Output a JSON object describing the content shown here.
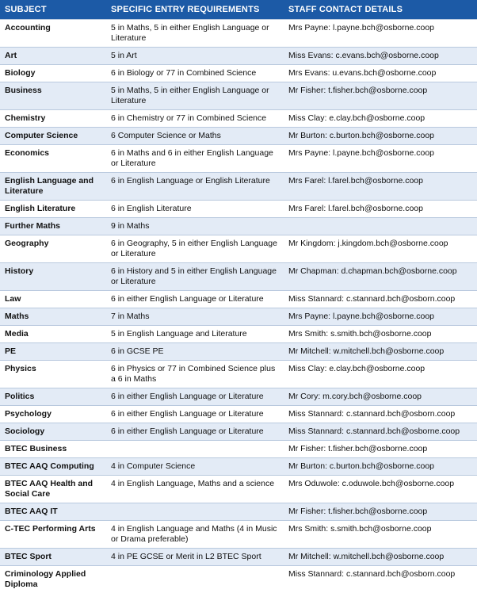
{
  "table": {
    "headers": [
      "SUBJECT",
      "SPECIFIC ENTRY REQUIREMENTS",
      "STAFF CONTACT DETAILS"
    ],
    "rows": [
      [
        "Accounting",
        "5 in Maths, 5 in either English Language or Literature",
        "Mrs Payne: l.payne.bch@osborne.coop"
      ],
      [
        "Art",
        "5 in Art",
        "Miss Evans: c.evans.bch@osborne.coop"
      ],
      [
        "Biology",
        "6 in Biology or 77 in Combined Science",
        "Mrs Evans: u.evans.bch@osborne.coop"
      ],
      [
        "Business",
        "5 in Maths, 5 in either English Language or Literature",
        "Mr Fisher: t.fisher.bch@osborne.coop"
      ],
      [
        "Chemistry",
        "6 in Chemistry or 77 in Combined Science",
        "Miss Clay: e.clay.bch@osborne.coop"
      ],
      [
        "Computer Science",
        "6 Computer Science or Maths",
        "Mr Burton: c.burton.bch@osborne.coop"
      ],
      [
        "Economics",
        "6 in Maths and 6 in either English Language or Literature",
        "Mrs Payne: l.payne.bch@osborne.coop"
      ],
      [
        "English Language and Literature",
        "6 in English Language or English Literature",
        "Mrs Farel: l.farel.bch@osborne.coop"
      ],
      [
        "English Literature",
        "6 in English Literature",
        "Mrs Farel: l.farel.bch@osborne.coop"
      ],
      [
        "Further Maths",
        "9 in Maths",
        null
      ],
      [
        "Geography",
        "6 in Geography, 5 in either English Language or Literature",
        "Mr Kingdom: j.kingdom.bch@osborne.coop"
      ],
      [
        "History",
        "6 in History and 5 in either English Language or Literature",
        "Mr Chapman: d.chapman.bch@osborne.coop"
      ],
      [
        "Law",
        "6 in either English Language or Literature",
        "Miss Stannard: c.stannard.bch@osborn.coop"
      ],
      [
        "Maths",
        "7 in Maths",
        "Mrs Payne: l.payne.bch@osborne.coop"
      ],
      [
        "Media",
        "5 in English Language and Literature",
        "Mrs Smith: s.smith.bch@osborne.coop"
      ],
      [
        "PE",
        "6 in GCSE PE",
        "Mr Mitchell: w.mitchell.bch@osborne.coop"
      ],
      [
        "Physics",
        "6 in Physics or 77 in Combined Science plus a 6 in Maths",
        "Miss Clay: e.clay.bch@osborne.coop"
      ],
      [
        "Politics",
        "6 in either English Language or Literature",
        "Mr Cory: m.cory.bch@osborne.coop"
      ],
      [
        "Psychology",
        "6 in either English Language or Literature",
        "Miss Stannard: c.stannard.bch@osborn.coop"
      ],
      [
        "Sociology",
        "6 in either English Language or Literature",
        "Miss Stannard: c.stannard.bch@osborne.coop"
      ],
      [
        "BTEC Business",
        null,
        "Mr Fisher: t.fisher.bch@osborne.coop"
      ],
      [
        "BTEC AAQ Computing",
        "4 in Computer Science",
        "Mr Burton: c.burton.bch@osborne.coop"
      ],
      [
        "BTEC AAQ Health and Social Care",
        "4 in English Language, Maths and a science",
        "Mrs Oduwole: c.oduwole.bch@osborne.coop"
      ],
      [
        "BTEC AAQ IT",
        null,
        "Mr Fisher: t.fisher.bch@osborne.coop"
      ],
      [
        "C-TEC Performing Arts",
        "4 in English Language and Maths (4 in Music or Drama preferable)",
        "Mrs Smith: s.smith.bch@osborne.coop"
      ],
      [
        "BTEC Sport",
        "4 in PE GCSE or Merit in L2 BTEC Sport",
        "Mr Mitchell: w.mitchell.bch@osborne.coop"
      ],
      [
        "Criminology Applied Diploma",
        null,
        "Miss Stannard: c.stannard.bch@osborn.coop"
      ]
    ]
  }
}
